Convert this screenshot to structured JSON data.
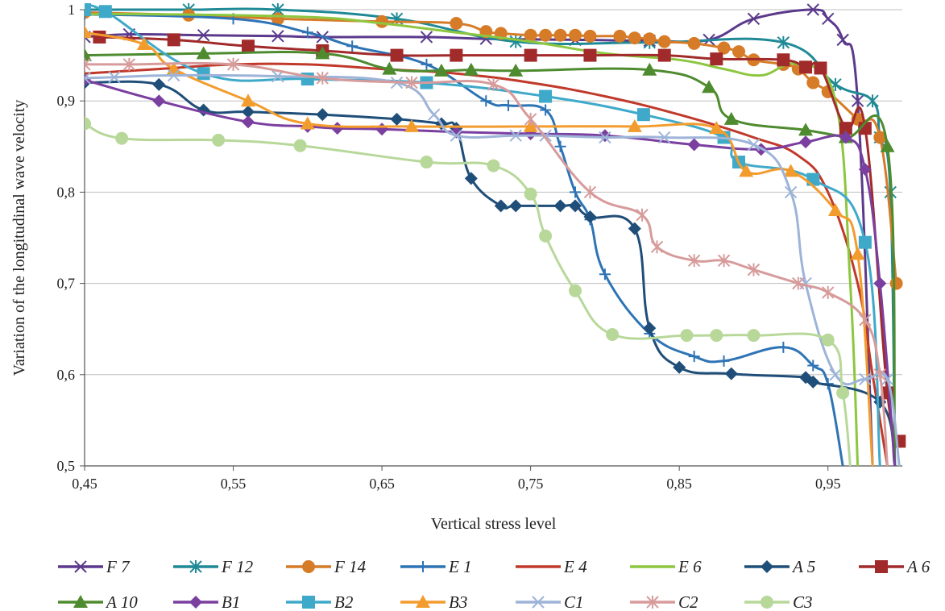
{
  "chart_data": {
    "type": "line",
    "title": "",
    "xlabel": "Vertical stress level",
    "ylabel": "Variation of the longitudinal wave velocity",
    "xlim": [
      0.45,
      1.0
    ],
    "ylim": [
      0.5,
      1.0
    ],
    "x_ticks": [
      "0,45",
      "0,55",
      "0,65",
      "0,75",
      "0,85",
      "0,95"
    ],
    "y_ticks": [
      "0,5",
      "0,6",
      "0,7",
      "0,8",
      "0,9",
      "1"
    ],
    "grid": "horizontal",
    "legend_position": "bottom",
    "series": [
      {
        "name": "F 7",
        "color": "#5B3A8C",
        "marker": "x",
        "x": [
          0.45,
          0.48,
          0.53,
          0.58,
          0.61,
          0.68,
          0.72,
          0.78,
          0.83,
          0.87,
          0.9,
          0.94,
          0.95,
          0.96,
          0.97,
          0.98
        ],
        "y": [
          0.97,
          0.973,
          0.972,
          0.971,
          0.97,
          0.97,
          0.968,
          0.967,
          0.966,
          0.967,
          0.99,
          1.0,
          0.99,
          0.967,
          0.9,
          0.5
        ]
      },
      {
        "name": "F 12",
        "color": "#1F8A96",
        "marker": "star",
        "x": [
          0.45,
          0.52,
          0.58,
          0.66,
          0.74,
          0.83,
          0.92,
          0.955,
          0.98,
          0.985,
          0.992,
          0.995
        ],
        "y": [
          1.0,
          1.0,
          1.0,
          0.99,
          0.965,
          0.964,
          0.964,
          0.918,
          0.9,
          0.86,
          0.8,
          0.5
        ]
      },
      {
        "name": "F 14",
        "color": "#D67C28",
        "marker": "circle",
        "x": [
          0.45,
          0.52,
          0.58,
          0.65,
          0.7,
          0.72,
          0.73,
          0.75,
          0.76,
          0.77,
          0.78,
          0.79,
          0.81,
          0.82,
          0.83,
          0.84,
          0.86,
          0.88,
          0.89,
          0.9,
          0.92,
          0.93,
          0.94,
          0.95,
          0.97,
          0.985,
          0.996
        ],
        "y": [
          0.997,
          0.994,
          0.99,
          0.987,
          0.985,
          0.976,
          0.974,
          0.972,
          0.972,
          0.972,
          0.972,
          0.971,
          0.971,
          0.969,
          0.968,
          0.965,
          0.963,
          0.958,
          0.954,
          0.945,
          0.94,
          0.935,
          0.92,
          0.91,
          0.88,
          0.86,
          0.7
        ]
      },
      {
        "name": "E 1",
        "color": "#2E74B5",
        "marker": "plus",
        "x": [
          0.45,
          0.55,
          0.6,
          0.63,
          0.68,
          0.72,
          0.735,
          0.76,
          0.77,
          0.78,
          0.79,
          0.8,
          0.83,
          0.86,
          0.88,
          0.92,
          0.94,
          0.95,
          0.96
        ],
        "y": [
          0.995,
          0.99,
          0.975,
          0.96,
          0.94,
          0.9,
          0.895,
          0.89,
          0.85,
          0.8,
          0.77,
          0.71,
          0.645,
          0.62,
          0.615,
          0.63,
          0.61,
          0.59,
          0.5
        ]
      },
      {
        "name": "E 4",
        "color": "#C0392B",
        "marker": "none",
        "x": [
          0.45,
          0.5,
          0.55,
          0.6,
          0.65,
          0.7,
          0.75,
          0.8,
          0.85,
          0.9,
          0.93,
          0.95,
          0.97,
          0.98,
          0.99
        ],
        "y": [
          0.93,
          0.935,
          0.94,
          0.94,
          0.935,
          0.93,
          0.92,
          0.905,
          0.885,
          0.86,
          0.84,
          0.8,
          0.7,
          0.6,
          0.5
        ]
      },
      {
        "name": "E 6",
        "color": "#8DC63F",
        "marker": "none",
        "x": [
          0.45,
          0.5,
          0.6,
          0.65,
          0.7,
          0.75,
          0.8,
          0.85,
          0.88,
          0.905,
          0.93,
          0.955,
          0.965,
          0.97
        ],
        "y": [
          0.995,
          0.995,
          0.992,
          0.985,
          0.975,
          0.965,
          0.952,
          0.945,
          0.935,
          0.928,
          0.94,
          0.9,
          0.7,
          0.5
        ]
      },
      {
        "name": "A 5",
        "color": "#1F4E79",
        "marker": "diamond",
        "x": [
          0.45,
          0.5,
          0.53,
          0.56,
          0.61,
          0.66,
          0.69,
          0.7,
          0.71,
          0.73,
          0.74,
          0.77,
          0.78,
          0.79,
          0.82,
          0.83,
          0.85,
          0.885,
          0.935,
          0.94,
          0.985,
          0.995
        ],
        "y": [
          0.92,
          0.918,
          0.89,
          0.888,
          0.885,
          0.88,
          0.875,
          0.87,
          0.815,
          0.785,
          0.785,
          0.785,
          0.785,
          0.773,
          0.76,
          0.651,
          0.608,
          0.601,
          0.597,
          0.592,
          0.57,
          0.5
        ]
      },
      {
        "name": "A 6",
        "color": "#A12A2A",
        "marker": "square",
        "x": [
          0.46,
          0.51,
          0.56,
          0.61,
          0.66,
          0.7,
          0.75,
          0.79,
          0.84,
          0.875,
          0.92,
          0.935,
          0.945,
          0.962,
          0.975,
          0.99,
          0.998
        ],
        "y": [
          0.97,
          0.967,
          0.96,
          0.955,
          0.95,
          0.95,
          0.95,
          0.95,
          0.95,
          0.946,
          0.945,
          0.937,
          0.936,
          0.87,
          0.87,
          0.58,
          0.527
        ]
      },
      {
        "name": "A 10",
        "color": "#4E8B2F",
        "marker": "triangle",
        "x": [
          0.45,
          0.53,
          0.61,
          0.655,
          0.69,
          0.71,
          0.74,
          0.83,
          0.87,
          0.885,
          0.935,
          0.962,
          0.99,
          0.995
        ],
        "y": [
          0.95,
          0.952,
          0.952,
          0.935,
          0.933,
          0.934,
          0.933,
          0.934,
          0.915,
          0.88,
          0.868,
          0.86,
          0.85,
          0.5
        ]
      },
      {
        "name": "B1",
        "color": "#7B3FA0",
        "marker": "diamond",
        "x": [
          0.45,
          0.5,
          0.56,
          0.6,
          0.62,
          0.65,
          0.7,
          0.75,
          0.8,
          0.86,
          0.905,
          0.935,
          0.962,
          0.975,
          0.985,
          0.995
        ],
        "y": [
          0.923,
          0.9,
          0.877,
          0.872,
          0.87,
          0.869,
          0.866,
          0.864,
          0.862,
          0.852,
          0.847,
          0.855,
          0.86,
          0.825,
          0.7,
          0.5
        ]
      },
      {
        "name": "B2",
        "color": "#3FA9C9",
        "marker": "square",
        "x": [
          0.45,
          0.464,
          0.53,
          0.6,
          0.68,
          0.76,
          0.826,
          0.88,
          0.89,
          0.94,
          0.975,
          0.985
        ],
        "y": [
          1.0,
          0.998,
          0.93,
          0.924,
          0.92,
          0.905,
          0.885,
          0.86,
          0.833,
          0.814,
          0.745,
          0.5
        ]
      },
      {
        "name": "B3",
        "color": "#F39C2E",
        "marker": "triangle",
        "x": [
          0.45,
          0.49,
          0.51,
          0.56,
          0.6,
          0.67,
          0.75,
          0.82,
          0.875,
          0.895,
          0.925,
          0.955,
          0.97,
          0.98
        ],
        "y": [
          0.975,
          0.962,
          0.935,
          0.9,
          0.875,
          0.872,
          0.872,
          0.872,
          0.87,
          0.823,
          0.823,
          0.78,
          0.732,
          0.5
        ]
      },
      {
        "name": "C1",
        "color": "#9DB4D8",
        "marker": "x",
        "x": [
          0.45,
          0.47,
          0.51,
          0.58,
          0.66,
          0.685,
          0.7,
          0.74,
          0.76,
          0.8,
          0.84,
          0.9,
          0.925,
          0.935,
          0.955,
          0.975,
          0.99,
          0.998
        ],
        "y": [
          0.925,
          0.926,
          0.928,
          0.927,
          0.92,
          0.885,
          0.862,
          0.862,
          0.862,
          0.86,
          0.86,
          0.852,
          0.8,
          0.7,
          0.6,
          0.595,
          0.595,
          0.5
        ]
      },
      {
        "name": "C2",
        "color": "#D79B9B",
        "marker": "star",
        "x": [
          0.45,
          0.48,
          0.55,
          0.61,
          0.67,
          0.725,
          0.75,
          0.79,
          0.825,
          0.835,
          0.86,
          0.88,
          0.9,
          0.93,
          0.95,
          0.975,
          0.985,
          0.99
        ],
        "y": [
          0.94,
          0.94,
          0.94,
          0.925,
          0.92,
          0.918,
          0.88,
          0.8,
          0.775,
          0.74,
          0.725,
          0.725,
          0.715,
          0.7,
          0.69,
          0.66,
          0.6,
          0.5
        ]
      },
      {
        "name": "C3",
        "color": "#B8D89A",
        "marker": "circle",
        "x": [
          0.45,
          0.475,
          0.54,
          0.595,
          0.68,
          0.725,
          0.75,
          0.76,
          0.78,
          0.805,
          0.855,
          0.875,
          0.9,
          0.95,
          0.96,
          0.965
        ],
        "y": [
          0.875,
          0.859,
          0.857,
          0.851,
          0.833,
          0.829,
          0.798,
          0.752,
          0.692,
          0.644,
          0.643,
          0.643,
          0.643,
          0.638,
          0.58,
          0.5
        ]
      }
    ]
  }
}
